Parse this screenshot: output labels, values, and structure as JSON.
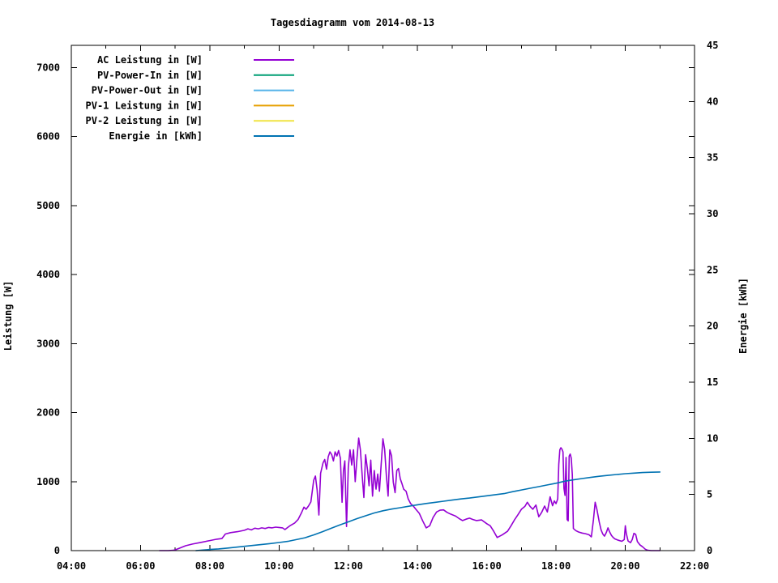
{
  "chart_data": {
    "type": "line",
    "title": "Tagesdiagramm vom 2014-08-13",
    "x_axis": {
      "label": "",
      "range_hours": [
        4,
        22
      ],
      "major_ticks": [
        {
          "hour": 4,
          "label": "04:00"
        },
        {
          "hour": 6,
          "label": "06:00"
        },
        {
          "hour": 8,
          "label": "08:00"
        },
        {
          "hour": 10,
          "label": "10:00"
        },
        {
          "hour": 12,
          "label": "12:00"
        },
        {
          "hour": 14,
          "label": "14:00"
        },
        {
          "hour": 16,
          "label": "16:00"
        },
        {
          "hour": 18,
          "label": "18:00"
        },
        {
          "hour": 20,
          "label": "20:00"
        },
        {
          "hour": 22,
          "label": "22:00"
        }
      ],
      "minor_tick_every_hours": 1
    },
    "y_axis": {
      "label": "Leistung [W]",
      "range": [
        0,
        7320
      ],
      "ticks": [
        0,
        1000,
        2000,
        3000,
        4000,
        5000,
        6000,
        7000
      ]
    },
    "y2_axis": {
      "label": "Energie [kWh]",
      "range": [
        0,
        45
      ],
      "ticks": [
        0,
        5,
        10,
        15,
        20,
        25,
        30,
        35,
        40,
        45
      ]
    },
    "grid": false,
    "legend_position": "top-left-inside",
    "series": [
      {
        "name": "AC Leistung in [W]",
        "slug": "ac-leistung",
        "color": "#9400D3",
        "axis": "y",
        "points": [
          [
            6.55,
            0
          ],
          [
            6.8,
            0
          ],
          [
            6.95,
            5
          ],
          [
            7.05,
            20
          ],
          [
            7.17,
            45
          ],
          [
            7.3,
            70
          ],
          [
            7.5,
            95
          ],
          [
            7.75,
            120
          ],
          [
            8.0,
            145
          ],
          [
            8.2,
            165
          ],
          [
            8.35,
            175
          ],
          [
            8.45,
            240
          ],
          [
            8.6,
            260
          ],
          [
            8.8,
            275
          ],
          [
            9.0,
            295
          ],
          [
            9.1,
            315
          ],
          [
            9.2,
            300
          ],
          [
            9.3,
            325
          ],
          [
            9.4,
            315
          ],
          [
            9.5,
            330
          ],
          [
            9.6,
            320
          ],
          [
            9.7,
            335
          ],
          [
            9.8,
            330
          ],
          [
            9.9,
            340
          ],
          [
            10.0,
            335
          ],
          [
            10.1,
            330
          ],
          [
            10.17,
            305
          ],
          [
            10.25,
            335
          ],
          [
            10.33,
            365
          ],
          [
            10.45,
            400
          ],
          [
            10.55,
            450
          ],
          [
            10.65,
            550
          ],
          [
            10.72,
            630
          ],
          [
            10.78,
            600
          ],
          [
            10.85,
            645
          ],
          [
            10.92,
            705
          ],
          [
            11.0,
            1020
          ],
          [
            11.05,
            1080
          ],
          [
            11.1,
            880
          ],
          [
            11.15,
            515
          ],
          [
            11.2,
            1120
          ],
          [
            11.27,
            1270
          ],
          [
            11.32,
            1320
          ],
          [
            11.37,
            1180
          ],
          [
            11.42,
            1360
          ],
          [
            11.47,
            1430
          ],
          [
            11.52,
            1390
          ],
          [
            11.57,
            1300
          ],
          [
            11.62,
            1430
          ],
          [
            11.67,
            1370
          ],
          [
            11.72,
            1450
          ],
          [
            11.77,
            1340
          ],
          [
            11.82,
            700
          ],
          [
            11.86,
            1160
          ],
          [
            11.9,
            1300
          ],
          [
            11.95,
            350
          ],
          [
            12.0,
            1210
          ],
          [
            12.05,
            1460
          ],
          [
            12.1,
            1240
          ],
          [
            12.15,
            1460
          ],
          [
            12.2,
            1000
          ],
          [
            12.25,
            1340
          ],
          [
            12.3,
            1630
          ],
          [
            12.35,
            1460
          ],
          [
            12.4,
            1090
          ],
          [
            12.45,
            770
          ],
          [
            12.5,
            1390
          ],
          [
            12.55,
            1190
          ],
          [
            12.6,
            940
          ],
          [
            12.65,
            1310
          ],
          [
            12.7,
            790
          ],
          [
            12.75,
            1160
          ],
          [
            12.8,
            890
          ],
          [
            12.85,
            1110
          ],
          [
            12.9,
            860
          ],
          [
            12.95,
            1260
          ],
          [
            13.0,
            1620
          ],
          [
            13.05,
            1470
          ],
          [
            13.1,
            1080
          ],
          [
            13.15,
            790
          ],
          [
            13.2,
            1460
          ],
          [
            13.25,
            1370
          ],
          [
            13.3,
            990
          ],
          [
            13.35,
            840
          ],
          [
            13.4,
            1160
          ],
          [
            13.45,
            1190
          ],
          [
            13.5,
            1040
          ],
          [
            13.55,
            970
          ],
          [
            13.6,
            890
          ],
          [
            13.67,
            860
          ],
          [
            13.73,
            750
          ],
          [
            13.8,
            680
          ],
          [
            13.87,
            650
          ],
          [
            13.95,
            600
          ],
          [
            14.05,
            540
          ],
          [
            14.15,
            430
          ],
          [
            14.25,
            330
          ],
          [
            14.35,
            360
          ],
          [
            14.45,
            480
          ],
          [
            14.55,
            560
          ],
          [
            14.65,
            585
          ],
          [
            14.75,
            590
          ],
          [
            14.85,
            555
          ],
          [
            14.95,
            530
          ],
          [
            15.1,
            500
          ],
          [
            15.2,
            465
          ],
          [
            15.3,
            435
          ],
          [
            15.4,
            455
          ],
          [
            15.5,
            470
          ],
          [
            15.6,
            450
          ],
          [
            15.7,
            435
          ],
          [
            15.85,
            445
          ],
          [
            16.0,
            390
          ],
          [
            16.1,
            360
          ],
          [
            16.2,
            280
          ],
          [
            16.3,
            190
          ],
          [
            16.45,
            230
          ],
          [
            16.6,
            280
          ],
          [
            16.7,
            360
          ],
          [
            16.8,
            445
          ],
          [
            16.9,
            520
          ],
          [
            17.0,
            600
          ],
          [
            17.1,
            640
          ],
          [
            17.17,
            700
          ],
          [
            17.25,
            640
          ],
          [
            17.33,
            600
          ],
          [
            17.42,
            660
          ],
          [
            17.5,
            490
          ],
          [
            17.58,
            550
          ],
          [
            17.67,
            645
          ],
          [
            17.75,
            560
          ],
          [
            17.83,
            780
          ],
          [
            17.9,
            650
          ],
          [
            17.95,
            720
          ],
          [
            18.0,
            680
          ],
          [
            18.05,
            750
          ],
          [
            18.08,
            1250
          ],
          [
            18.11,
            1460
          ],
          [
            18.14,
            1490
          ],
          [
            18.17,
            1470
          ],
          [
            18.2,
            1430
          ],
          [
            18.23,
            900
          ],
          [
            18.26,
            800
          ],
          [
            18.29,
            1350
          ],
          [
            18.32,
            450
          ],
          [
            18.35,
            430
          ],
          [
            18.38,
            1370
          ],
          [
            18.41,
            1400
          ],
          [
            18.44,
            1340
          ],
          [
            18.47,
            1100
          ],
          [
            18.5,
            320
          ],
          [
            18.57,
            290
          ],
          [
            18.65,
            270
          ],
          [
            18.75,
            255
          ],
          [
            18.85,
            245
          ],
          [
            18.95,
            230
          ],
          [
            19.02,
            200
          ],
          [
            19.08,
            450
          ],
          [
            19.13,
            700
          ],
          [
            19.18,
            600
          ],
          [
            19.25,
            410
          ],
          [
            19.3,
            300
          ],
          [
            19.35,
            240
          ],
          [
            19.4,
            210
          ],
          [
            19.45,
            260
          ],
          [
            19.5,
            330
          ],
          [
            19.55,
            270
          ],
          [
            19.6,
            220
          ],
          [
            19.65,
            190
          ],
          [
            19.7,
            170
          ],
          [
            19.8,
            150
          ],
          [
            19.9,
            135
          ],
          [
            19.97,
            160
          ],
          [
            20.0,
            360
          ],
          [
            20.03,
            250
          ],
          [
            20.08,
            140
          ],
          [
            20.15,
            115
          ],
          [
            20.2,
            160
          ],
          [
            20.25,
            250
          ],
          [
            20.3,
            235
          ],
          [
            20.35,
            130
          ],
          [
            20.42,
            85
          ],
          [
            20.5,
            55
          ],
          [
            20.58,
            20
          ],
          [
            20.65,
            5
          ],
          [
            20.75,
            0
          ],
          [
            21.0,
            0
          ]
        ]
      },
      {
        "name": "PV-Power-In in [W]",
        "slug": "pv-power-in",
        "color": "#009E73",
        "axis": "y",
        "points": []
      },
      {
        "name": "PV-Power-Out in [W]",
        "slug": "pv-power-out",
        "color": "#56B4E9",
        "axis": "y",
        "points": []
      },
      {
        "name": "PV-1 Leistung in [W]",
        "slug": "pv-1-leistung",
        "color": "#E69F00",
        "axis": "y",
        "points": []
      },
      {
        "name": "PV-2 Leistung in [W]",
        "slug": "pv-2-leistung",
        "color": "#F0E442",
        "axis": "y",
        "points": []
      },
      {
        "name": "Energie in [kWh]",
        "slug": "energie",
        "color": "#0072B2",
        "axis": "y2",
        "points": [
          [
            7.6,
            0
          ],
          [
            7.8,
            0.05
          ],
          [
            8.0,
            0.1
          ],
          [
            8.25,
            0.15
          ],
          [
            8.5,
            0.22
          ],
          [
            8.75,
            0.3
          ],
          [
            9.0,
            0.38
          ],
          [
            9.25,
            0.46
          ],
          [
            9.5,
            0.55
          ],
          [
            9.75,
            0.63
          ],
          [
            10.0,
            0.72
          ],
          [
            10.25,
            0.82
          ],
          [
            10.5,
            0.98
          ],
          [
            10.75,
            1.15
          ],
          [
            11.0,
            1.4
          ],
          [
            11.25,
            1.68
          ],
          [
            11.5,
            1.98
          ],
          [
            11.75,
            2.28
          ],
          [
            12.0,
            2.56
          ],
          [
            12.25,
            2.85
          ],
          [
            12.5,
            3.1
          ],
          [
            12.75,
            3.35
          ],
          [
            13.0,
            3.55
          ],
          [
            13.25,
            3.7
          ],
          [
            13.5,
            3.82
          ],
          [
            13.75,
            3.95
          ],
          [
            14.0,
            4.08
          ],
          [
            14.25,
            4.2
          ],
          [
            14.5,
            4.3
          ],
          [
            14.75,
            4.4
          ],
          [
            15.0,
            4.5
          ],
          [
            15.25,
            4.6
          ],
          [
            15.5,
            4.68
          ],
          [
            15.75,
            4.78
          ],
          [
            16.0,
            4.88
          ],
          [
            16.25,
            4.98
          ],
          [
            16.5,
            5.08
          ],
          [
            16.75,
            5.25
          ],
          [
            17.0,
            5.4
          ],
          [
            17.25,
            5.55
          ],
          [
            17.5,
            5.7
          ],
          [
            17.75,
            5.85
          ],
          [
            18.0,
            6.0
          ],
          [
            18.25,
            6.18
          ],
          [
            18.5,
            6.3
          ],
          [
            18.75,
            6.42
          ],
          [
            19.0,
            6.52
          ],
          [
            19.25,
            6.62
          ],
          [
            19.5,
            6.7
          ],
          [
            19.75,
            6.78
          ],
          [
            20.0,
            6.85
          ],
          [
            20.25,
            6.9
          ],
          [
            20.5,
            6.95
          ],
          [
            20.75,
            6.98
          ],
          [
            21.0,
            7.0
          ]
        ]
      }
    ]
  }
}
